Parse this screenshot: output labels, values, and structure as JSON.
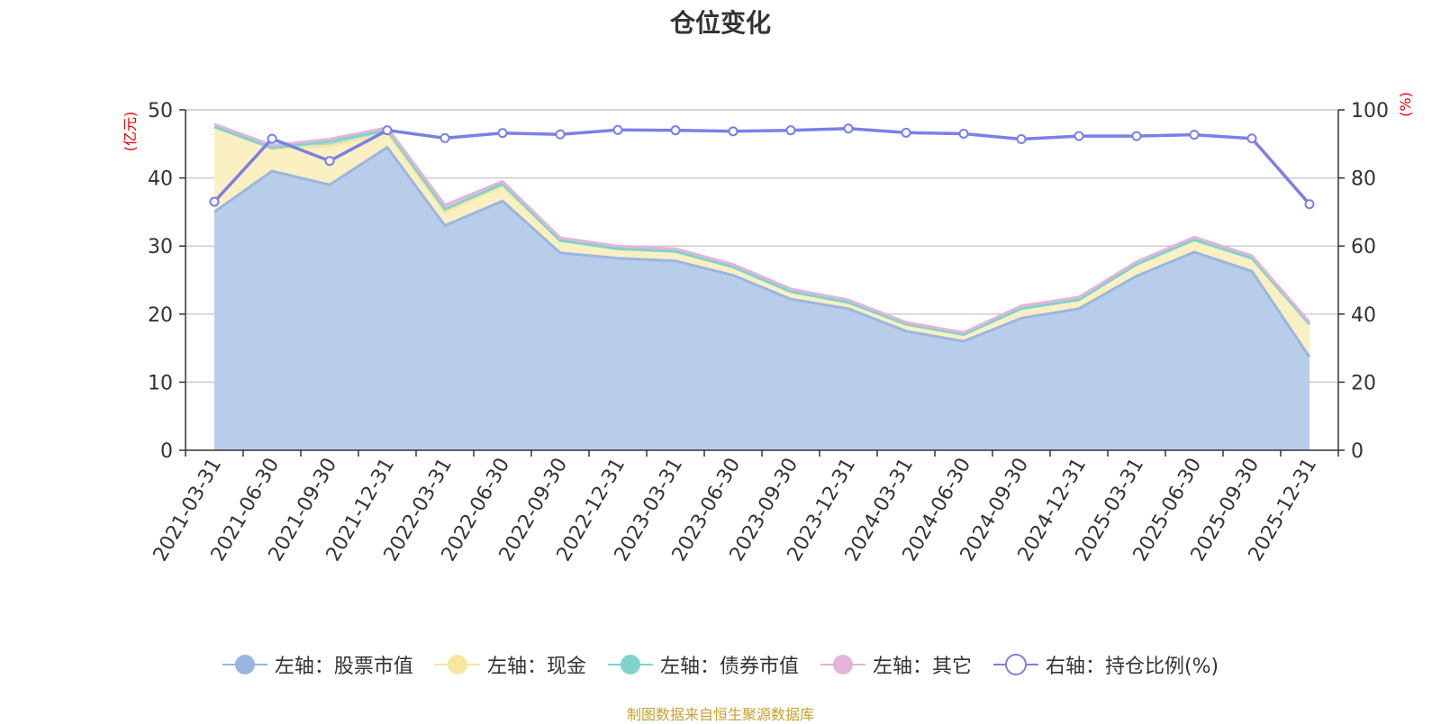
{
  "title": "仓位变化",
  "source_note": "制图数据来自恒生聚源数据库",
  "chart_data": {
    "type": "area",
    "title": "仓位变化",
    "categories": [
      "2021-03-31",
      "2021-06-30",
      "2021-09-30",
      "2021-12-31",
      "2022-03-31",
      "2022-06-30",
      "2022-09-30",
      "2022-12-31",
      "2023-03-31",
      "2023-06-30",
      "2023-09-30",
      "2023-12-31",
      "2024-03-31",
      "2024-06-30",
      "2024-09-30",
      "2024-12-31",
      "2025-03-31",
      "2025-06-30",
      "2025-09-30",
      "2025-12-31"
    ],
    "y_left": {
      "unit_label": "(亿元)",
      "ylim": [
        0,
        50
      ],
      "ticks": [
        "0",
        "10",
        "20",
        "30",
        "40",
        "50"
      ],
      "tick_values": [
        0,
        10,
        20,
        30,
        40,
        50
      ]
    },
    "y_right": {
      "unit_label": "(%)",
      "ylim": [
        0,
        100
      ],
      "ticks": [
        "0",
        "20",
        "40",
        "60",
        "80",
        "100"
      ],
      "tick_values": [
        0,
        20,
        40,
        60,
        80,
        100
      ]
    },
    "grid": true,
    "legend_position": "bottom",
    "series": [
      {
        "name": "左轴：股票市值",
        "axis": "left",
        "kind": "stacked-area",
        "color": "#9ab6e0",
        "fill": "#b8cdea",
        "values": [
          35,
          41,
          39,
          44.5,
          33,
          36.6,
          29,
          28.2,
          27.8,
          25.7,
          22.2,
          20.8,
          17.5,
          16,
          19.4,
          20.8,
          25.6,
          29.1,
          26.3,
          13.7
        ]
      },
      {
        "name": "左轴：现金",
        "axis": "left",
        "kind": "stacked-area",
        "color": "#f5e6a0",
        "fill": "#fbf0c2",
        "values": [
          12.5,
          3.3,
          5.7,
          2.1,
          2.0,
          2.2,
          1.8,
          1.4,
          1.4,
          1.2,
          1.1,
          0.9,
          1.0,
          1.0,
          1.4,
          1.3,
          1.7,
          1.8,
          1.9,
          4.8
        ]
      },
      {
        "name": "左轴：债券市值",
        "axis": "left",
        "kind": "stacked-area",
        "color": "#7fd3cc",
        "fill": "#a5dcd5",
        "values": [
          0,
          0.1,
          0.7,
          0.4,
          0.4,
          0.3,
          0,
          0,
          0,
          0,
          0,
          0,
          0,
          0,
          0,
          0,
          0,
          0,
          0,
          0
        ]
      },
      {
        "name": "左轴：其它",
        "axis": "left",
        "kind": "stacked-area",
        "color": "#e3b5db",
        "fill": "#ebc4e4",
        "values": [
          0.4,
          0.4,
          0.3,
          0.4,
          0.6,
          0.4,
          0.4,
          0.4,
          0.4,
          0.4,
          0.4,
          0.4,
          0.3,
          0.3,
          0.4,
          0.4,
          0.4,
          0.4,
          0.4,
          0.3
        ]
      },
      {
        "name": "右轴：持仓比例(%)",
        "axis": "right",
        "kind": "line",
        "color": "#7b7fe6",
        "values": [
          73,
          91.5,
          85,
          94,
          91.7,
          93.2,
          92.8,
          94.1,
          94,
          93.7,
          94,
          94.5,
          93.3,
          93,
          91.4,
          92.3,
          92.3,
          92.7,
          91.6,
          72.3
        ]
      }
    ]
  }
}
